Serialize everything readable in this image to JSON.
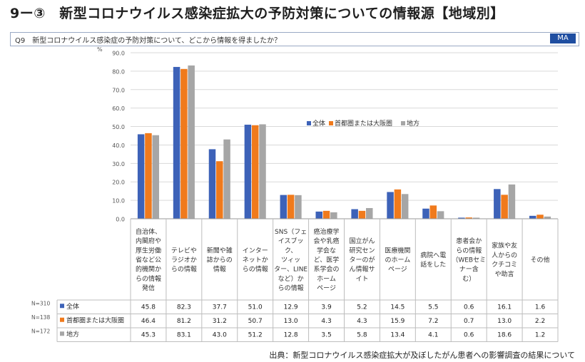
{
  "title": "9ー③　新型コロナウイルス感染症拡大の予防対策についての情報源【地域別】",
  "question": "Q9　新型コロナウイルス感染症の予防対策について、どこから情報を得ましたか？",
  "badge": "MA",
  "source": "出典：新型コロナウイルス感染症拡大が及ぼしたがん患者への影響調査の結果について",
  "colors": {
    "全体": "#3d62b8",
    "首都圏または大阪圏": "#f07a1c",
    "地方": "#a6a6a6"
  },
  "chart_data": {
    "type": "bar",
    "yunit": "%",
    "ylim": [
      0,
      90
    ],
    "yticks": [
      "0.0",
      "10.0",
      "20.0",
      "30.0",
      "40.0",
      "50.0",
      "60.0",
      "70.0",
      "80.0",
      "90.0"
    ],
    "grid": true,
    "legend_position": "right-middle",
    "categories": [
      [
        "自治体、",
        "内閣府や",
        "厚生労働",
        "省など公",
        "的機関か",
        "らの情報",
        "発信"
      ],
      [
        "テレビや",
        "ラジオか",
        "らの情報"
      ],
      [
        "新聞や雑",
        "誌からの",
        "情報"
      ],
      [
        "インター",
        "ネットか",
        "らの情報"
      ],
      [
        "SNS（フェ",
        "イスブッ",
        "ク、",
        "ツィッ",
        "ター、LINE",
        "など）か",
        "らの情報"
      ],
      [
        "癌治療学",
        "会や乳癌",
        "学会な",
        "ど、医学",
        "系学会の",
        "ホーム",
        "ページ"
      ],
      [
        "国立がん",
        "研究セン",
        "ターのが",
        "ん情報サ",
        "イト"
      ],
      [
        "医療機関",
        "のホーム",
        "ページ"
      ],
      [
        "病院へ電",
        "話をした"
      ],
      [
        "患者会か",
        "らの情報",
        "（WEBセミ",
        "ナー含",
        "む）"
      ],
      [
        "家族や友",
        "人からの",
        "クチコミ",
        "や助言"
      ],
      [
        "その他"
      ]
    ],
    "series": [
      {
        "name": "全体",
        "n": "N=310",
        "values": [
          45.8,
          82.3,
          37.7,
          51.0,
          12.9,
          3.9,
          5.2,
          14.5,
          5.5,
          0.6,
          16.1,
          1.6
        ]
      },
      {
        "name": "首都圏または大阪圏",
        "n": "N=138",
        "values": [
          46.4,
          81.2,
          31.2,
          50.7,
          13.0,
          4.3,
          4.3,
          15.9,
          7.2,
          0.7,
          13.0,
          2.2
        ]
      },
      {
        "name": "地方",
        "n": "N=172",
        "values": [
          45.3,
          83.1,
          43.0,
          51.2,
          12.8,
          3.5,
          5.8,
          13.4,
          4.1,
          0.6,
          18.6,
          1.2
        ]
      }
    ]
  }
}
